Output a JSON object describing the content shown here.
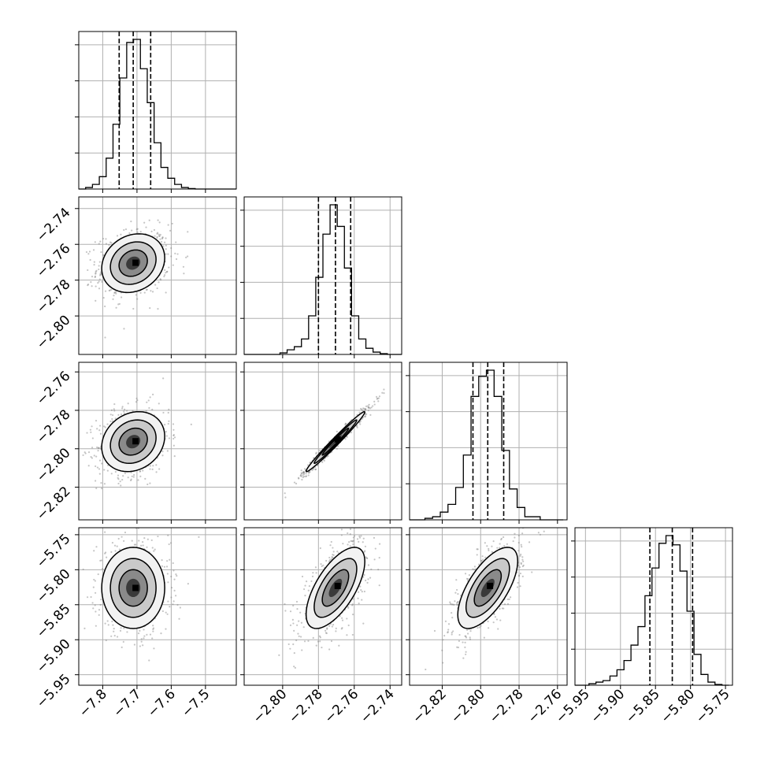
{
  "chart_data": {
    "type": "corner",
    "title": "",
    "parameters": [
      {
        "label": "",
        "range": [
          -7.87,
          -7.41
        ],
        "ticks": [
          -7.8,
          -7.7,
          -7.6,
          -7.5
        ],
        "tick_labels": [
          "−7.8",
          "−7.7",
          "−7.6",
          "−7.5"
        ],
        "quantiles": [
          -7.752,
          -7.711,
          -7.66
        ],
        "histogram": {
          "bin_edges": [
            -7.87,
            -7.85,
            -7.83,
            -7.81,
            -7.79,
            -7.77,
            -7.75,
            -7.73,
            -7.71,
            -7.69,
            -7.67,
            -7.65,
            -7.63,
            -7.61,
            -7.59,
            -7.57,
            -7.55,
            -7.53,
            -7.51,
            -7.49,
            -7.47,
            -7.45,
            -7.43,
            -7.41
          ],
          "counts": [
            0.0,
            0.01,
            0.03,
            0.08,
            0.2,
            0.42,
            0.72,
            0.95,
            0.97,
            0.78,
            0.56,
            0.3,
            0.14,
            0.07,
            0.03,
            0.01,
            0.003,
            0.0,
            0.0,
            0.0,
            0.0,
            0.0,
            0.0
          ]
        }
      },
      {
        "label": "",
        "range": [
          -2.8215,
          -2.7335
        ],
        "ticks": [
          -2.8,
          -2.78,
          -2.76,
          -2.74
        ],
        "tick_labels": [
          "−2.80",
          "−2.78",
          "−2.76",
          "−2.74"
        ],
        "quantiles": [
          -2.78,
          -2.7705,
          -2.762
        ],
        "histogram": {
          "bin_edges": [
            -2.8215,
            -2.8175,
            -2.8135,
            -2.8095,
            -2.8055,
            -2.8015,
            -2.7975,
            -2.7935,
            -2.7895,
            -2.7855,
            -2.7815,
            -2.7775,
            -2.7735,
            -2.7695,
            -2.7655,
            -2.7615,
            -2.7575,
            -2.7535,
            -2.7495,
            -2.7455,
            -2.7415,
            -2.7375,
            -2.7335
          ],
          "counts": [
            0.0,
            0.0,
            0.0,
            0.0,
            0.0,
            0.01,
            0.03,
            0.05,
            0.1,
            0.25,
            0.5,
            0.78,
            0.97,
            0.83,
            0.56,
            0.25,
            0.1,
            0.04,
            0.015,
            0.005,
            0.0,
            0.0
          ]
        }
      },
      {
        "label": "",
        "range": [
          -2.837,
          -2.755
        ],
        "ticks": [
          -2.82,
          -2.8,
          -2.78,
          -2.76
        ],
        "tick_labels": [
          "−2.82",
          "−2.80",
          "−2.78",
          "−2.76"
        ],
        "quantiles": [
          -2.804,
          -2.7963,
          -2.788
        ],
        "histogram": {
          "bin_edges": [
            -2.837,
            -2.833,
            -2.829,
            -2.825,
            -2.821,
            -2.817,
            -2.813,
            -2.809,
            -2.805,
            -2.801,
            -2.797,
            -2.793,
            -2.789,
            -2.785,
            -2.781,
            -2.777,
            -2.773,
            -2.769,
            -2.765,
            -2.761,
            -2.757
          ],
          "counts": [
            0.0,
            0.0,
            0.01,
            0.02,
            0.05,
            0.1,
            0.21,
            0.42,
            0.8,
            0.93,
            0.97,
            0.8,
            0.45,
            0.2,
            0.08,
            0.02,
            0.02,
            0.0,
            0.0,
            0.0
          ]
        }
      },
      {
        "label": "",
        "range": [
          -5.965,
          -5.74
        ],
        "ticks": [
          -5.95,
          -5.9,
          -5.85,
          -5.8,
          -5.75
        ],
        "tick_labels": [
          "−5.95",
          "−5.90",
          "−5.85",
          "−5.80",
          "−5.75"
        ],
        "quantiles": [
          -5.858,
          -5.826,
          -5.797
        ],
        "histogram": {
          "bin_edges": [
            -5.965,
            -5.955,
            -5.945,
            -5.935,
            -5.925,
            -5.915,
            -5.905,
            -5.895,
            -5.885,
            -5.875,
            -5.865,
            -5.855,
            -5.845,
            -5.835,
            -5.825,
            -5.815,
            -5.805,
            -5.795,
            -5.785,
            -5.775,
            -5.765,
            -5.755,
            -5.745
          ],
          "counts": [
            0.0,
            0.0,
            0.01,
            0.02,
            0.03,
            0.06,
            0.1,
            0.16,
            0.26,
            0.38,
            0.58,
            0.76,
            0.92,
            0.97,
            0.91,
            0.74,
            0.48,
            0.2,
            0.07,
            0.02,
            0.005,
            0.0
          ]
        }
      }
    ],
    "means": [
      -7.711,
      -2.7705,
      -2.7963,
      -5.826
    ],
    "sigmas": [
      0.046,
      0.0082,
      0.0078,
      0.029
    ],
    "correlations": {
      "1,0": 0.18,
      "2,0": 0.18,
      "2,1": 0.985,
      "3,0": 0.0,
      "3,1": 0.65,
      "3,2": 0.66
    },
    "n_scatter_points": 700,
    "grid": true,
    "colors": {
      "line": "#000000",
      "grid": "#b0b0b0",
      "scatter": "#7f7f7f",
      "background": "#ffffff"
    }
  }
}
